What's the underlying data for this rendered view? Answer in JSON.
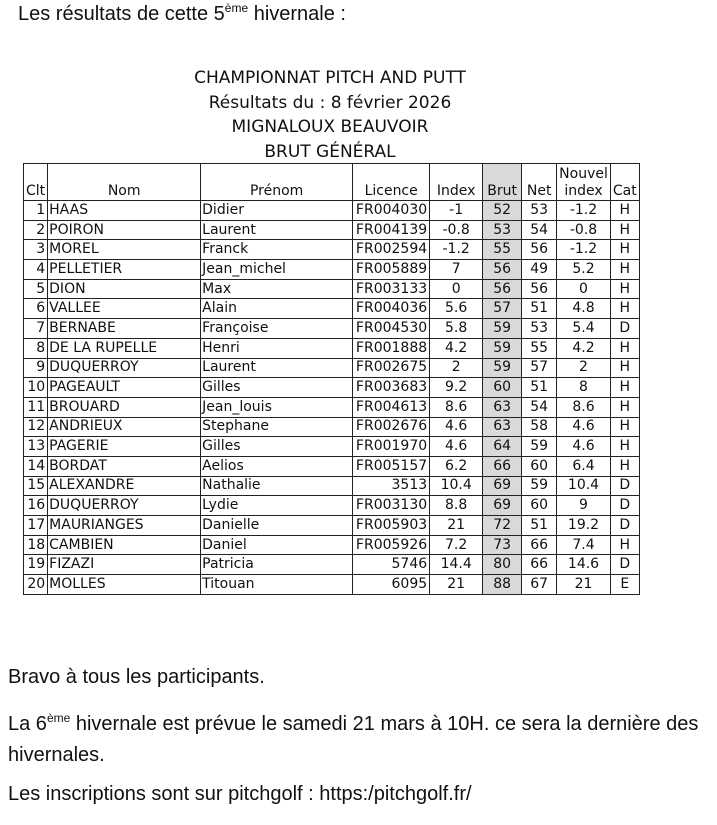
{
  "intro": {
    "before": "Les résultats de cette 5",
    "sup": "ème",
    "after": " hivernale :"
  },
  "header": {
    "lines": [
      "CHAMPIONNAT PITCH AND PUTT",
      "Résultats du : 8 février 2026",
      "MIGNALOUX BEAUVOIR",
      "BRUT GÉNÉRAL"
    ]
  },
  "table": {
    "columns": [
      "Clt",
      "Nom",
      "Prénom",
      "Licence",
      "Index",
      "Brut",
      "Net",
      "Nouvel index",
      "Cat"
    ],
    "rows": [
      [
        "1",
        "HAAS",
        "Didier",
        "FR004030",
        "-1",
        "52",
        "53",
        "-1.2",
        "H"
      ],
      [
        "2",
        "POIRON",
        "Laurent",
        "FR004139",
        "-0.8",
        "53",
        "54",
        "-0.8",
        "H"
      ],
      [
        "3",
        "MOREL",
        "Franck",
        "FR002594",
        "-1.2",
        "55",
        "56",
        "-1.2",
        "H"
      ],
      [
        "4",
        "PELLETIER",
        "Jean_michel",
        "FR005889",
        "7",
        "56",
        "49",
        "5.2",
        "H"
      ],
      [
        "5",
        "DION",
        "Max",
        "FR003133",
        "0",
        "56",
        "56",
        "0",
        "H"
      ],
      [
        "6",
        "VALLEE",
        "Alain",
        "FR004036",
        "5.6",
        "57",
        "51",
        "4.8",
        "H"
      ],
      [
        "7",
        "BERNABE",
        "Françoise",
        "FR004530",
        "5.8",
        "59",
        "53",
        "5.4",
        "D"
      ],
      [
        "8",
        "DE LA RUPELLE",
        "Henri",
        "FR001888",
        "4.2",
        "59",
        "55",
        "4.2",
        "H"
      ],
      [
        "9",
        "DUQUERROY",
        "Laurent",
        "FR002675",
        "2",
        "59",
        "57",
        "2",
        "H"
      ],
      [
        "10",
        "PAGEAULT",
        "Gilles",
        "FR003683",
        "9.2",
        "60",
        "51",
        "8",
        "H"
      ],
      [
        "11",
        "BROUARD",
        "Jean_louis",
        "FR004613",
        "8.6",
        "63",
        "54",
        "8.6",
        "H"
      ],
      [
        "12",
        "ANDRIEUX",
        "Stephane",
        "FR002676",
        "4.6",
        "63",
        "58",
        "4.6",
        "H"
      ],
      [
        "13",
        "PAGERIE",
        "Gilles",
        "FR001970",
        "4.6",
        "64",
        "59",
        "4.6",
        "H"
      ],
      [
        "14",
        "BORDAT",
        "Aelios",
        "FR005157",
        "6.2",
        "66",
        "60",
        "6.4",
        "H"
      ],
      [
        "15",
        "ALEXANDRE",
        "Nathalie",
        "3513",
        "10.4",
        "69",
        "59",
        "10.4",
        "D"
      ],
      [
        "16",
        "DUQUERROY",
        "Lydie",
        "FR003130",
        "8.8",
        "69",
        "60",
        "9",
        "D"
      ],
      [
        "17",
        "MAURIANGES",
        "Danielle",
        "FR005903",
        "21",
        "72",
        "51",
        "19.2",
        "D"
      ],
      [
        "18",
        "CAMBIEN",
        "Daniel",
        "FR005926",
        "7.2",
        "73",
        "66",
        "7.4",
        "H"
      ],
      [
        "19",
        "FIZAZI",
        "Patricia",
        "5746",
        "14.4",
        "80",
        "66",
        "14.6",
        "D"
      ],
      [
        "20",
        "MOLLES",
        "Titouan",
        "6095",
        "21",
        "88",
        "67",
        "21",
        "E"
      ]
    ]
  },
  "footer": {
    "congrats": "Bravo à tous les participants.",
    "next": {
      "before": "La 6",
      "sup": "ème",
      "after": " hivernale est prévue le samedi 21 mars à 10H. ce sera la dernière des hivernales."
    },
    "signup": "Les inscriptions sont sur pitchgolf : https:/pitchgolf.fr/"
  }
}
